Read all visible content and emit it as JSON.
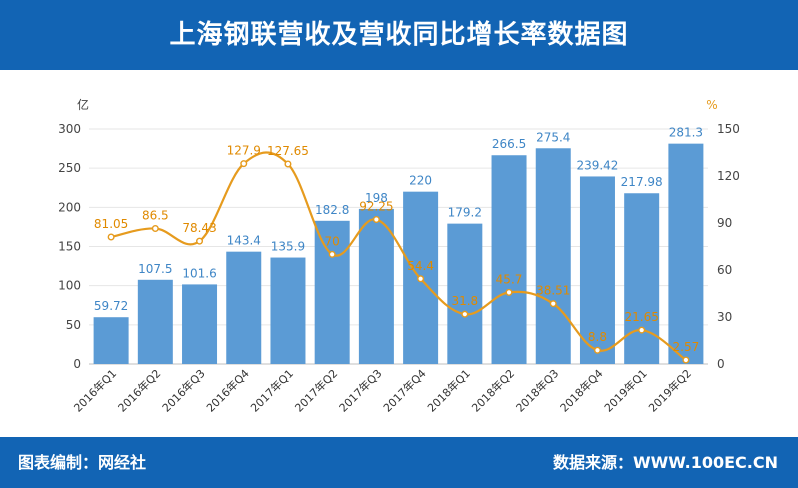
{
  "header": {
    "title": "上海钢联营收及营收同比增长率数据图"
  },
  "footer": {
    "left": "图表编制：网经社",
    "right": "数据来源：WWW.100EC.CN"
  },
  "colors": {
    "bar": "#5b9bd5",
    "line": "#e69b1e",
    "header": "#1264b4",
    "grid": "#e6e6e6"
  },
  "chart_data": {
    "type": "bar",
    "categories": [
      "2016年Q1",
      "2016年Q2",
      "2016年Q3",
      "2016年Q4",
      "2017年Q1",
      "2017年Q2",
      "2017年Q3",
      "2017年Q4",
      "2018年Q1",
      "2018年Q2",
      "2018年Q3",
      "2018年Q4",
      "2019年Q1",
      "2019年Q2"
    ],
    "series": [
      {
        "values": [
          59.72,
          107.5,
          101.6,
          143.4,
          135.9,
          182.8,
          198,
          220,
          179.2,
          266.5,
          275.4,
          239.42,
          217.98,
          281.3
        ],
        "axis": "left",
        "kind": "bar"
      },
      {
        "values": [
          81.05,
          86.5,
          78.43,
          127.9,
          127.65,
          70,
          92.25,
          54.4,
          31.8,
          45.7,
          38.51,
          8.8,
          21.65,
          2.57
        ],
        "axis": "right",
        "kind": "line"
      }
    ],
    "yleft": {
      "unit": "亿",
      "lim": [
        0,
        300
      ],
      "ticks": [
        0,
        50,
        100,
        150,
        200,
        250,
        300
      ]
    },
    "yright": {
      "unit": "%",
      "lim": [
        0,
        150
      ],
      "ticks": [
        0,
        30,
        60,
        90,
        120,
        150
      ]
    },
    "grid": true
  }
}
